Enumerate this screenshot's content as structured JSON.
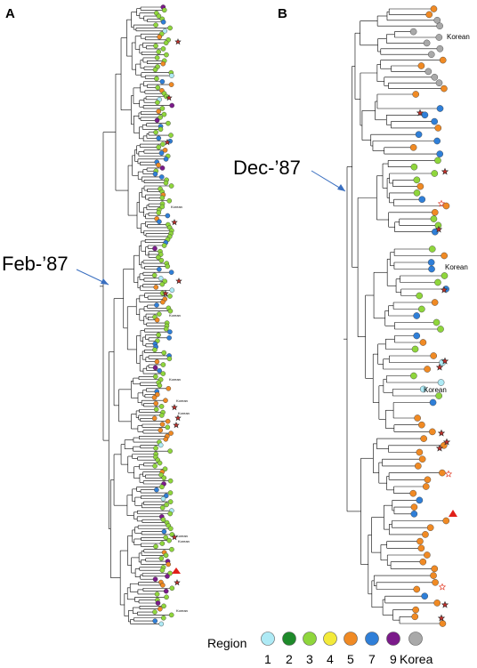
{
  "panels": [
    {
      "letter": "A",
      "annotation": "Feb-’87",
      "labels": [
        "Korean",
        "Korean",
        "Korean",
        "Korean",
        "Korean",
        "Korean",
        "Korean",
        "Korean"
      ]
    },
    {
      "letter": "B",
      "annotation": "Dec-’87",
      "labels": [
        "Korean",
        "Korean",
        "Korean"
      ]
    }
  ],
  "legend": {
    "title": "Region",
    "items": [
      {
        "label": "1",
        "color": "#aeeaf5"
      },
      {
        "label": "2",
        "color": "#1e8a2a"
      },
      {
        "label": "3",
        "color": "#8fd63c"
      },
      {
        "label": "4",
        "color": "#f3ea3a"
      },
      {
        "label": "5",
        "color": "#f08a24"
      },
      {
        "label": "7",
        "color": "#2f7fd8"
      },
      {
        "label": "9",
        "color": "#7b1a8a"
      },
      {
        "label": "Korea",
        "color": "#a9a9a9"
      }
    ]
  },
  "markers": {
    "star_color": "#c0302a",
    "triangle_color": "#e0201a",
    "open_star_color": "#e0301a"
  }
}
